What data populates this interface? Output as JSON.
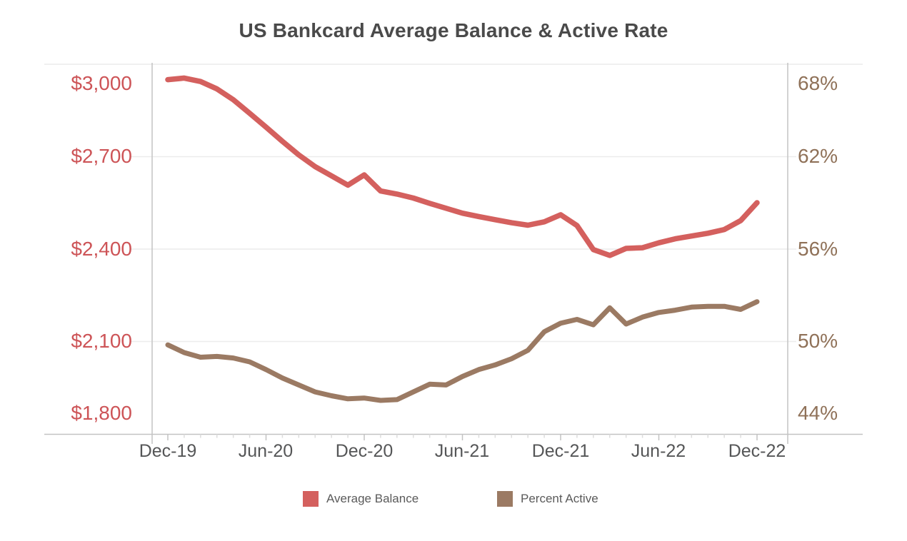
{
  "chart_data": {
    "type": "line",
    "title": "US Bankcard Average Balance & Active Rate",
    "x": [
      "Dec-19",
      "Jan-20",
      "Feb-20",
      "Mar-20",
      "Apr-20",
      "May-20",
      "Jun-20",
      "Jul-20",
      "Aug-20",
      "Sep-20",
      "Oct-20",
      "Nov-20",
      "Dec-20",
      "Jan-21",
      "Feb-21",
      "Mar-21",
      "Apr-21",
      "May-21",
      "Jun-21",
      "Jul-21",
      "Aug-21",
      "Sep-21",
      "Oct-21",
      "Nov-21",
      "Dec-21",
      "Jan-22",
      "Feb-22",
      "Mar-22",
      "Apr-22",
      "May-22",
      "Jun-22",
      "Jul-22",
      "Aug-22",
      "Sep-22",
      "Oct-22",
      "Nov-22",
      "Dec-22"
    ],
    "x_tick_labels": [
      "Dec-19",
      "Jun-20",
      "Dec-20",
      "Jun-21",
      "Dec-21",
      "Jun-22",
      "Dec-22"
    ],
    "y_left": {
      "ticks": [
        "$3,000",
        "$2,700",
        "$2,400",
        "$2,100",
        "$1,800"
      ],
      "tick_values": [
        3000,
        2700,
        2400,
        2100,
        1800
      ],
      "min": 1800,
      "max": 3000,
      "color": "#cd5457"
    },
    "y_right": {
      "ticks": [
        "68%",
        "62%",
        "56%",
        "50%",
        "44%"
      ],
      "tick_values": [
        68,
        62,
        56,
        50,
        44
      ],
      "min": 44,
      "max": 68,
      "color": "#8f7158"
    },
    "grid": true,
    "legend_position": "bottom",
    "series": [
      {
        "name": "Average Balance",
        "axis": "left",
        "color": "#d4605e",
        "values": [
          2950,
          2955,
          2944,
          2920,
          2885,
          2841,
          2796,
          2750,
          2706,
          2668,
          2638,
          2608,
          2641,
          2589,
          2579,
          2566,
          2549,
          2533,
          2517,
          2506,
          2496,
          2486,
          2478,
          2489,
          2512,
          2477,
          2399,
          2380,
          2403,
          2405,
          2421,
          2434,
          2443,
          2452,
          2464,
          2493,
          2551
        ]
      },
      {
        "name": "Percent Active",
        "axis": "right",
        "color": "#9b7a63",
        "values": [
          49.8,
          49.3,
          49.0,
          49.05,
          48.95,
          48.7,
          48.2,
          47.65,
          47.2,
          46.75,
          46.5,
          46.3,
          46.35,
          46.2,
          46.25,
          46.75,
          47.25,
          47.2,
          47.75,
          48.2,
          48.5,
          48.9,
          49.45,
          50.65,
          51.2,
          51.45,
          51.1,
          52.2,
          51.15,
          51.6,
          51.9,
          52.05,
          52.25,
          52.3,
          52.3,
          52.1,
          52.6
        ]
      }
    ]
  }
}
